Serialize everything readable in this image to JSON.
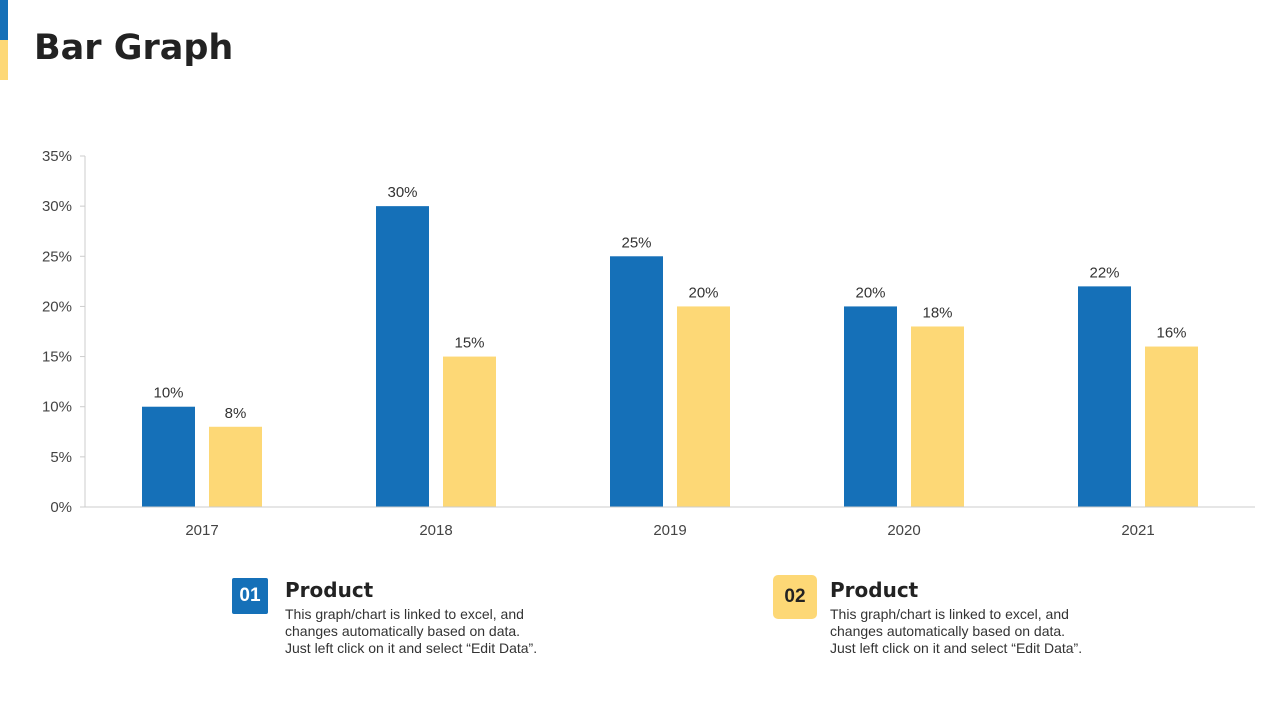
{
  "page": {
    "title": "Bar Graph"
  },
  "colors": {
    "series1": "#1570B8",
    "series2": "#FDD876",
    "axis": "#CCCCCC"
  },
  "chart_data": {
    "type": "bar",
    "title": "",
    "xlabel": "",
    "ylabel": "",
    "categories": [
      "2017",
      "2018",
      "2019",
      "2020",
      "2021"
    ],
    "series": [
      {
        "name": "Product 01",
        "values": [
          10,
          30,
          25,
          20,
          22
        ],
        "labels": [
          "10%",
          "30%",
          "25%",
          "20%",
          "22%"
        ]
      },
      {
        "name": "Product 02",
        "values": [
          8,
          15,
          20,
          18,
          16
        ],
        "labels": [
          "8%",
          "15%",
          "20%",
          "18%",
          "16%"
        ]
      }
    ],
    "ylim": [
      0,
      35
    ],
    "yticks": [
      0,
      5,
      10,
      15,
      20,
      25,
      30,
      35
    ],
    "ytick_labels": [
      "0%",
      "5%",
      "10%",
      "15%",
      "20%",
      "25%",
      "30%",
      "35%"
    ],
    "grid": false,
    "legend": "bottom"
  },
  "legend": [
    {
      "number": "01",
      "title": "Product",
      "lines": [
        "This graph/chart is linked to excel, and",
        "changes automatically based on data.",
        "Just left click on it and select “Edit Data”."
      ]
    },
    {
      "number": "02",
      "title": "Product",
      "lines": [
        "This graph/chart is linked to excel, and",
        "changes automatically based on data.",
        "Just left click on it and select “Edit Data”."
      ]
    }
  ]
}
